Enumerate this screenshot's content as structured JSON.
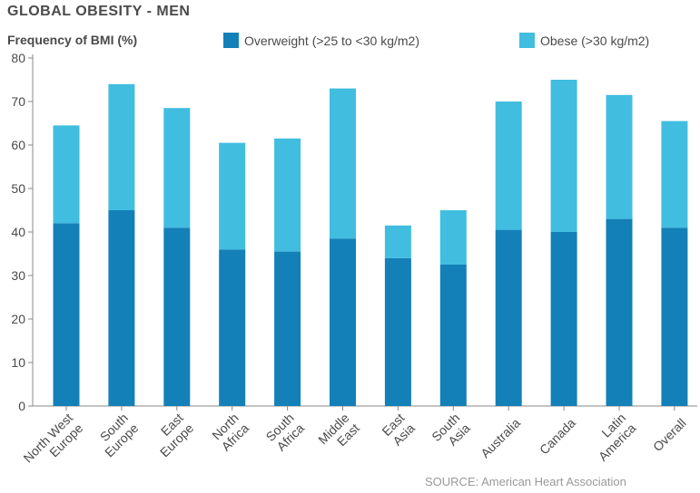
{
  "chart_data": {
    "type": "bar",
    "stacked": true,
    "title": "GLOBAL OBESITY - MEN",
    "ylabel": "Frequency of BMI (%)",
    "source": "SOURCE: American Heart Association",
    "ylim": [
      0,
      80
    ],
    "yticks": [
      0,
      10,
      20,
      30,
      40,
      50,
      60,
      70,
      80
    ],
    "grid": false,
    "legend_position": "top",
    "categories": [
      [
        "North West",
        "Europe"
      ],
      [
        "South",
        "Europe"
      ],
      [
        "East",
        "Europe"
      ],
      [
        "North",
        "Africa"
      ],
      [
        "South",
        "Africa"
      ],
      [
        "Middle",
        "East"
      ],
      [
        "East",
        "Asia"
      ],
      [
        "South",
        "Asia"
      ],
      [
        "Australia"
      ],
      [
        "Canada"
      ],
      [
        "Latin",
        "America"
      ],
      [
        "Overall"
      ]
    ],
    "series": [
      {
        "name": "Overweight (>25 to <30 kg/m2)",
        "color": "#1380b8",
        "values": [
          42,
          45,
          41,
          36,
          35.5,
          38.5,
          34,
          32.5,
          40.5,
          40,
          43,
          41
        ]
      },
      {
        "name": "Obese (>30 kg/m2)",
        "color": "#41bde0",
        "values": [
          22.5,
          29,
          27.5,
          24.5,
          26,
          34.5,
          7.5,
          12.5,
          29.5,
          35,
          28.5,
          24.5
        ]
      }
    ]
  }
}
